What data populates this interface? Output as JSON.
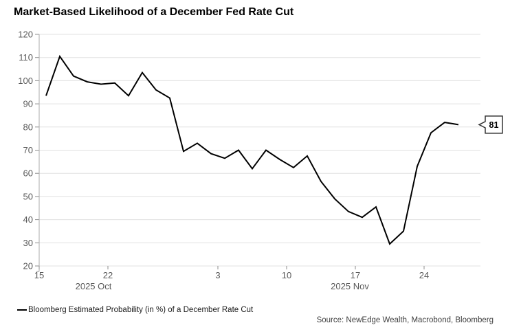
{
  "title": "Market-Based Likelihood of a December Fed Rate Cut",
  "legend": {
    "series_label": "Bloomberg Estimated Probability (in %) of a December Rate Cut"
  },
  "source": "Source: NewEdge Wealth, Macrobond, Bloomberg",
  "last_value_label": "81",
  "colors": {
    "line": "#000000",
    "grid": "#e0e0e0",
    "axis": "#ababab",
    "tick": "#8c8c8c",
    "tick_label": "#595959",
    "callout_border": "#333333",
    "callout_fill": "#ffffff",
    "callout_text": "#000000"
  },
  "chart_data": {
    "type": "line",
    "title": "Market-Based Likelihood of a December Fed Rate Cut",
    "x": [
      "Oct 15",
      "Oct 16",
      "Oct 17",
      "Oct 20",
      "Oct 21",
      "Oct 22",
      "Oct 23",
      "Oct 24",
      "Oct 27",
      "Oct 28",
      "Oct 29",
      "Oct 30",
      "Oct 31",
      "Nov 3",
      "Nov 4",
      "Nov 5",
      "Nov 6",
      "Nov 7",
      "Nov 10",
      "Nov 11",
      "Nov 12",
      "Nov 13",
      "Nov 14",
      "Nov 17",
      "Nov 18",
      "Nov 19",
      "Nov 20",
      "Nov 21",
      "Nov 24",
      "Nov 25",
      "Nov 26"
    ],
    "series": [
      {
        "name": "Bloomberg Estimated Probability (in %) of a December Rate Cut",
        "values": [
          93.5,
          110.5,
          102,
          99.5,
          98.5,
          99,
          93.5,
          103.5,
          96,
          92.5,
          69.5,
          73,
          68.5,
          66.5,
          70,
          62,
          70,
          66,
          62.5,
          67.5,
          56.5,
          49,
          43.5,
          41,
          45.5,
          29.5,
          35,
          63,
          77.5,
          82,
          81
        ]
      }
    ],
    "ylim": [
      20,
      120
    ],
    "ytick_step": 10,
    "yticks": [
      20,
      30,
      40,
      50,
      60,
      70,
      80,
      90,
      100,
      110,
      120
    ],
    "xticks": [
      {
        "label": "15",
        "index": 0
      },
      {
        "label": "22",
        "index": 5
      },
      {
        "label": "3",
        "index": 13
      },
      {
        "label": "10",
        "index": 18
      },
      {
        "label": "17",
        "index": 23
      },
      {
        "label": "24",
        "index": 28
      }
    ],
    "month_labels": [
      {
        "label": "2025 Oct",
        "index": 3.45
      },
      {
        "label": "2025 Nov",
        "index": 22.1
      }
    ],
    "grid": true,
    "legend_position": "bottom-left",
    "last_value": 81
  }
}
